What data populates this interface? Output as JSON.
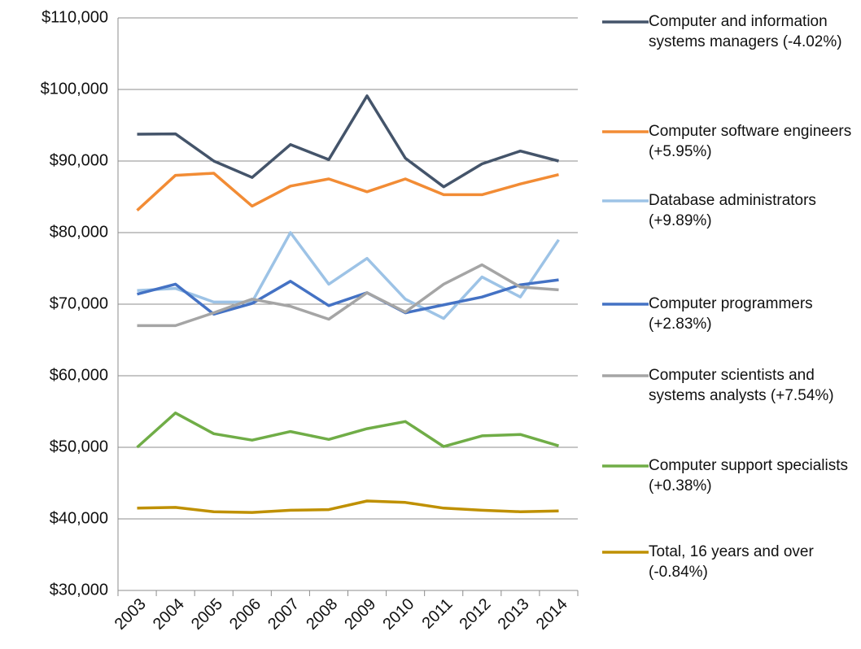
{
  "chart_data": {
    "type": "line",
    "categories": [
      "2003",
      "2004",
      "2005",
      "2006",
      "2007",
      "2008",
      "2009",
      "2010",
      "2011",
      "2012",
      "2013",
      "2014"
    ],
    "ylim": [
      30000,
      110000
    ],
    "yticks": [
      {
        "value": 30000,
        "label": "$30,000"
      },
      {
        "value": 40000,
        "label": "$40,000"
      },
      {
        "value": 50000,
        "label": "$50,000"
      },
      {
        "value": 60000,
        "label": "$60,000"
      },
      {
        "value": 70000,
        "label": "$70,000"
      },
      {
        "value": 80000,
        "label": "$80,000"
      },
      {
        "value": 90000,
        "label": "$90,000"
      },
      {
        "value": 100000,
        "label": "$100,000"
      },
      {
        "value": 110000,
        "label": "$110,000"
      }
    ],
    "grid": true,
    "legend": "right",
    "series": [
      {
        "name": "Computer and information systems managers (-4.02%)",
        "color": "#44546a",
        "values": [
          93750,
          93800,
          90000,
          87700,
          92300,
          90200,
          99100,
          90400,
          86400,
          89600,
          91400,
          90000
        ]
      },
      {
        "name": "Computer software engineers (+5.95%)",
        "color": "#f28c35",
        "values": [
          83100,
          88000,
          88300,
          83700,
          86500,
          87500,
          85700,
          87500,
          85300,
          85300,
          86800,
          88100
        ]
      },
      {
        "name": "Database administrators (+9.89%)",
        "color": "#9dc3e6",
        "values": [
          71900,
          72200,
          70300,
          70300,
          80000,
          72800,
          76400,
          70700,
          68000,
          73800,
          71000,
          79000
        ]
      },
      {
        "name": "Computer programmers (+2.83%)",
        "color": "#4472c4",
        "values": [
          71400,
          72800,
          68600,
          70100,
          73200,
          69800,
          71600,
          68800,
          69900,
          71000,
          72700,
          73400
        ]
      },
      {
        "name": "Computer scientists and systems analysts (+7.54%)",
        "color": "#a5a5a5",
        "values": [
          67000,
          67000,
          68800,
          70700,
          69700,
          67900,
          71600,
          68900,
          72800,
          75500,
          72400,
          72000
        ]
      },
      {
        "name": "Computer support specialists (+0.38%)",
        "color": "#70ad47",
        "values": [
          50000,
          54800,
          51900,
          51000,
          52200,
          51100,
          52600,
          53600,
          50100,
          51600,
          51800,
          50200
        ]
      },
      {
        "name": "Total, 16 years and over (-0.84%)",
        "color": "#bf9000",
        "values": [
          41500,
          41600,
          41000,
          40900,
          41200,
          41300,
          42500,
          42300,
          41500,
          41200,
          41000,
          41100
        ]
      }
    ]
  }
}
